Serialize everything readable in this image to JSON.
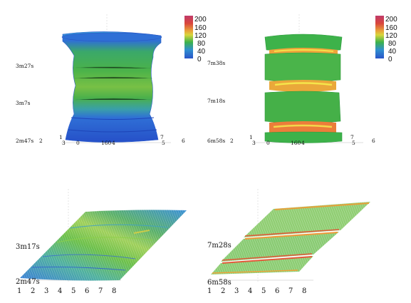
{
  "colors": {
    "scale": [
      "#2a5bd0",
      "#3f9fd4",
      "#3db24a",
      "#74c043",
      "#d7d23b",
      "#f2a43a",
      "#d93c3c",
      "#b03a7a"
    ]
  },
  "chart_data": [
    {
      "type": "heatmap",
      "panel": "top-left",
      "time_labels": [
        "3m27s",
        "3m7s",
        "2m47s"
      ],
      "axis_ticks": [
        "2",
        "1",
        "3",
        "0",
        "160",
        "4",
        "7",
        "5",
        "6"
      ],
      "colorbar": {
        "ticks": [
          "200",
          "160",
          "120",
          "80",
          "40",
          "0"
        ],
        "range": [
          0,
          200
        ]
      }
    },
    {
      "type": "heatmap",
      "panel": "top-right",
      "time_labels": [
        "7m38s",
        "7m18s",
        "6m58s"
      ],
      "axis_ticks": [
        "2",
        "1",
        "3",
        "0",
        "160",
        "4",
        "7",
        "5",
        "6"
      ],
      "colorbar": {
        "ticks": [
          "200",
          "160",
          "120",
          "80",
          "40",
          "0"
        ],
        "range": [
          0,
          200
        ]
      }
    },
    {
      "type": "heatmap",
      "panel": "bottom-left",
      "time_labels": [
        "3m17s",
        "2m47s"
      ],
      "x_ticks": [
        "1",
        "2",
        "3",
        "4",
        "5",
        "6",
        "7",
        "8"
      ]
    },
    {
      "type": "heatmap",
      "panel": "bottom-right",
      "time_labels": [
        "7m28s",
        "6m58s"
      ],
      "x_ticks": [
        "1",
        "2",
        "3",
        "4",
        "5",
        "6",
        "7",
        "8"
      ]
    }
  ]
}
